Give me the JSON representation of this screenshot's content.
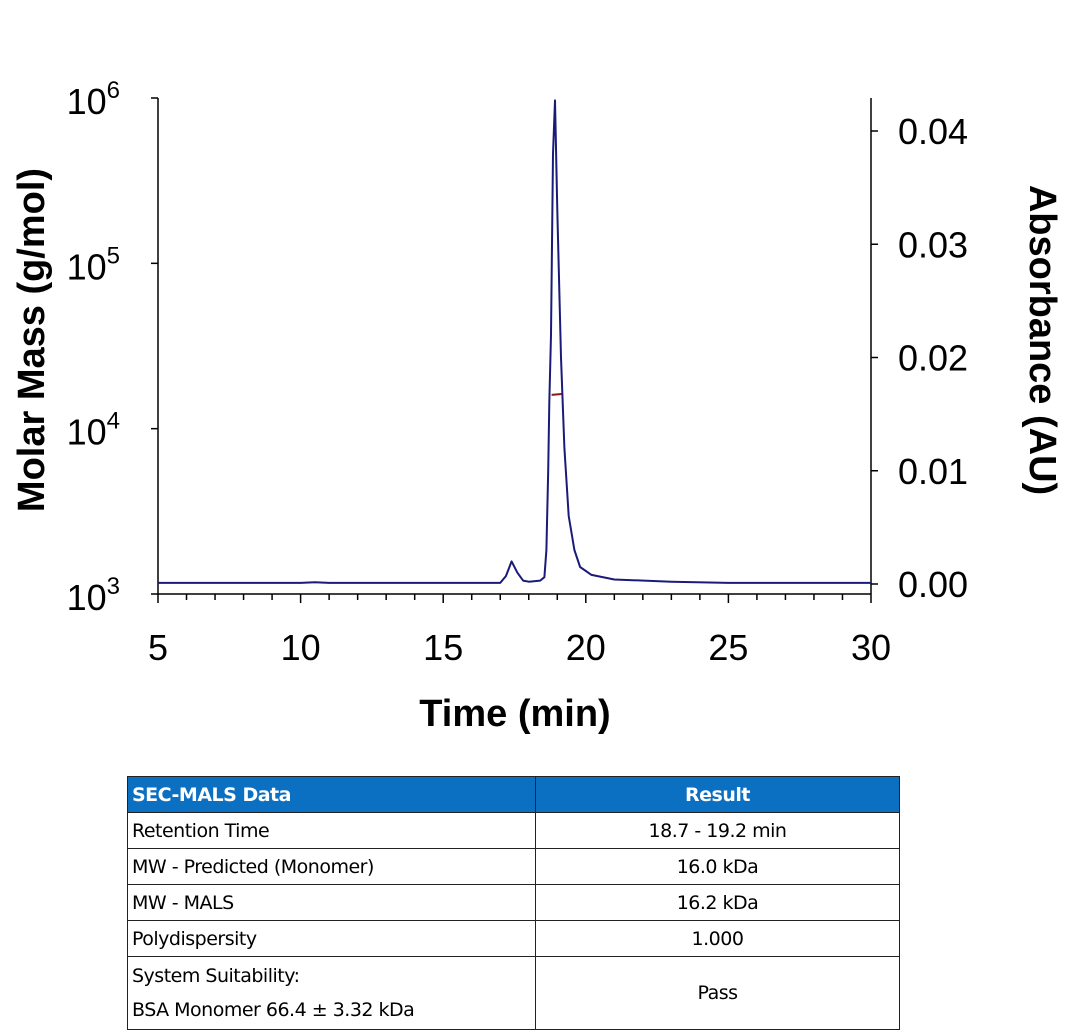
{
  "chart_data": {
    "type": "line",
    "xlabel": "Time (min)",
    "ylabel": "Molar Mass (g/mol)",
    "y2label": "Absorbance (AU)",
    "xlim": [
      5,
      30
    ],
    "xticks": [
      "5",
      "10",
      "15",
      "20",
      "25",
      "30"
    ],
    "ylim": [
      1000,
      1000000
    ],
    "yscale": "log",
    "yticks": [
      {
        "base": "10",
        "exp": "3"
      },
      {
        "base": "10",
        "exp": "4"
      },
      {
        "base": "10",
        "exp": "5"
      },
      {
        "base": "10",
        "exp": "6"
      }
    ],
    "y2lim": [
      0,
      0.043
    ],
    "y2ticks": [
      "0.00",
      "0.01",
      "0.02",
      "0.03",
      "0.04"
    ],
    "grid": false,
    "series": [
      {
        "axis": "right",
        "color": "#1a1a7a",
        "x": [
          5,
          10,
          10.5,
          11,
          17,
          17.2,
          17.4,
          17.6,
          17.8,
          18.0,
          18.4,
          18.55,
          18.62,
          18.68,
          18.72,
          18.78,
          18.85,
          18.92,
          19.0,
          19.13,
          19.25,
          19.4,
          19.6,
          19.8,
          20.2,
          21,
          23,
          25,
          30
        ],
        "y": [
          0.0001,
          0.0001,
          0.00016,
          0.0001,
          0.0001,
          0.0007,
          0.002,
          0.001,
          0.0003,
          0.0002,
          0.0003,
          0.0006,
          0.003,
          0.01,
          0.016,
          0.022,
          0.038,
          0.0427,
          0.033,
          0.02,
          0.012,
          0.006,
          0.003,
          0.0015,
          0.0008,
          0.0004,
          0.0002,
          0.0001,
          0.0001
        ]
      },
      {
        "axis": "left",
        "color": "#8b1a1a",
        "x": [
          18.8,
          19.15
        ],
        "y": [
          16000,
          16200
        ]
      }
    ]
  },
  "table": {
    "headers": [
      "SEC-MALS Data",
      "Result"
    ],
    "rows": [
      {
        "label": "Retention Time",
        "value": "18.7 - 19.2 min"
      },
      {
        "label": "MW - Predicted (Monomer)",
        "value": "16.0 kDa"
      },
      {
        "label": "MW - MALS",
        "value": "16.2 kDa"
      },
      {
        "label": "Polydispersity",
        "value": "1.000"
      },
      {
        "label": "System Suitability:",
        "label2": "BSA Monomer 66.4 ± 3.32 kDa",
        "value": "Pass"
      }
    ]
  }
}
